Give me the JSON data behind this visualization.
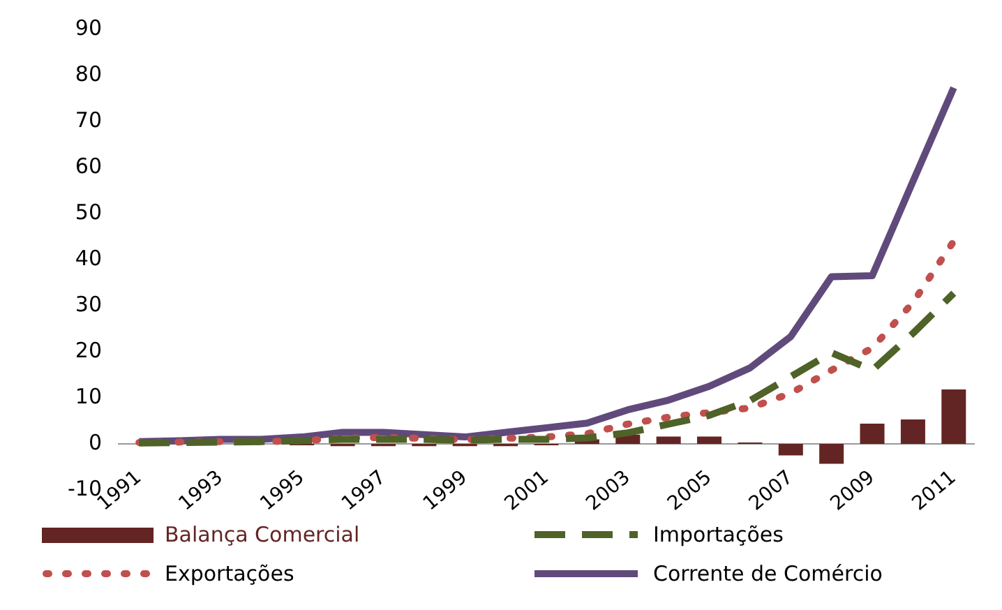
{
  "chart_data": {
    "type": "line",
    "categories": [
      "1991",
      null,
      "1993",
      null,
      "1995",
      null,
      "1997",
      null,
      "1999",
      null,
      "2001",
      null,
      "2003",
      null,
      "2005",
      null,
      "2007",
      null,
      "2009",
      null,
      "2011"
    ],
    "series": [
      {
        "name": "Balança Comercial",
        "type": "bar",
        "color": "#632523",
        "values": [
          null,
          null,
          null,
          null,
          -0.3,
          -0.5,
          -0.5,
          -0.5,
          -0.5,
          -0.5,
          -0.3,
          1,
          2,
          1.6,
          1.6,
          0.3,
          -2.5,
          -4.3,
          4.4,
          5.3,
          11.8
        ]
      },
      {
        "name": "Importações",
        "color": "#4f6228",
        "line_style": "dashed",
        "values": [
          0.2,
          0.3,
          0.4,
          0.5,
          0.7,
          1,
          1,
          1,
          0.8,
          1,
          1,
          1.3,
          2.4,
          4.3,
          6.2,
          9.4,
          14.6,
          19.8,
          16,
          24,
          32.7
        ]
      },
      {
        "name": "Exportações",
        "color": "#c0504d",
        "line_style": "dotted",
        "values": [
          0.3,
          0.4,
          0.5,
          0.5,
          0.7,
          1.2,
          1.4,
          1.2,
          0.9,
          1.2,
          1.5,
          2.2,
          4.3,
          5.8,
          6.8,
          7.8,
          11,
          16,
          20.8,
          30.7,
          44
        ]
      },
      {
        "name": "Corrente de Comércio",
        "color": "#604a7b",
        "line_style": "solid",
        "values": [
          0.5,
          0.7,
          1,
          1,
          1.5,
          2.5,
          2.5,
          2,
          1.5,
          2.5,
          3.5,
          4.5,
          7.4,
          9.5,
          12.5,
          16.5,
          23.3,
          36.3,
          36.5,
          57,
          77.3
        ]
      }
    ],
    "ylim": [
      -10,
      90
    ],
    "yticks": [
      -10,
      0,
      10,
      20,
      30,
      40,
      50,
      60,
      70,
      80,
      90
    ],
    "grid": false,
    "legend": "bottom"
  }
}
